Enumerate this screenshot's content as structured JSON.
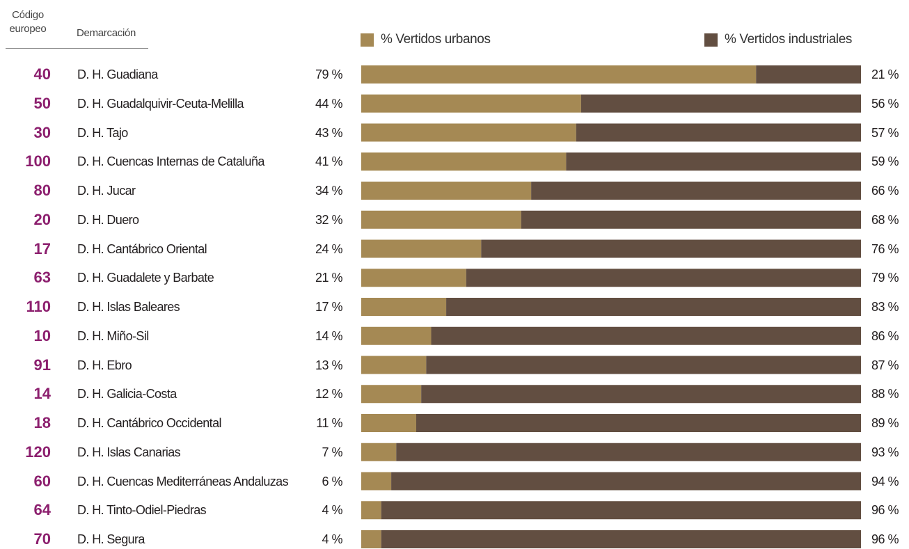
{
  "header": {
    "codigo_line1": "Código",
    "codigo_line2": "europeo",
    "demarcacion": "Demarcación"
  },
  "legend": {
    "urbanos": "% Vertidos urbanos",
    "industriales": "% Vertidos industriales"
  },
  "colors": {
    "urbanos": "#a58954",
    "industriales": "#624e41",
    "code": "#8c1f6e"
  },
  "chart_data": {
    "type": "bar",
    "orientation": "horizontal",
    "stacked": true,
    "percent": true,
    "xlim": [
      0,
      100
    ],
    "grid": false,
    "legend_position": "top",
    "codes": [
      "40",
      "50",
      "30",
      "100",
      "80",
      "20",
      "17",
      "63",
      "110",
      "10",
      "91",
      "14",
      "18",
      "120",
      "60",
      "64",
      "70"
    ],
    "categories": [
      "D. H. Guadiana",
      "D. H. Guadalquivir-Ceuta-Melilla",
      "D. H. Tajo",
      "D. H. Cuencas Internas de Cataluña",
      "D. H. Jucar",
      "D. H. Duero",
      "D. H. Cantábrico Oriental",
      "D. H. Guadalete y Barbate",
      "D. H. Islas Baleares",
      "D. H. Miño-Sil",
      "D. H. Ebro",
      "D. H. Galicia-Costa",
      "D. H. Cantábrico Occidental",
      "D. H. Islas Canarias",
      "D. H. Cuencas Mediterráneas Andaluzas",
      "D. H. Tinto-Odiel-Piedras",
      "D. H. Segura"
    ],
    "series": [
      {
        "name": "% Vertidos urbanos",
        "values": [
          79,
          44,
          43,
          41,
          34,
          32,
          24,
          21,
          17,
          14,
          13,
          12,
          11,
          7,
          6,
          4,
          4
        ],
        "labels": [
          "79 %",
          "44 %",
          "43 %",
          "41 %",
          "34 %",
          "32 %",
          "24 %",
          "21 %",
          "17 %",
          "14 %",
          "13 %",
          "12 %",
          "11 %",
          "7 %",
          "6 %",
          "4 %",
          "4 %"
        ]
      },
      {
        "name": "% Vertidos industriales",
        "values": [
          21,
          56,
          57,
          59,
          66,
          68,
          76,
          79,
          83,
          86,
          87,
          88,
          89,
          93,
          94,
          96,
          96
        ],
        "labels": [
          "21 %",
          "56 %",
          "57 %",
          "59 %",
          "66 %",
          "68 %",
          "76 %",
          "79 %",
          "83 %",
          "86 %",
          "87 %",
          "88 %",
          "89 %",
          "93 %",
          "94 %",
          "96 %",
          "96 %"
        ]
      }
    ]
  }
}
